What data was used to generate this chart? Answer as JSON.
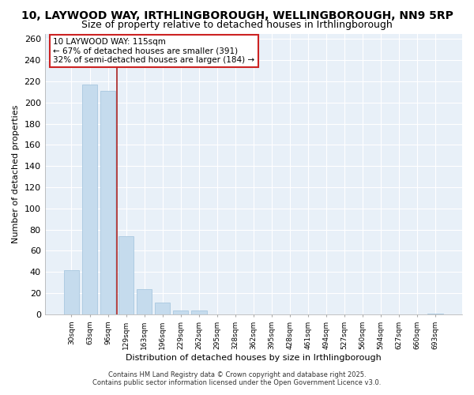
{
  "title": "10, LAYWOOD WAY, IRTHLINGBOROUGH, WELLINGBOROUGH, NN9 5RP",
  "subtitle": "Size of property relative to detached houses in Irthlingborough",
  "xlabel": "Distribution of detached houses by size in Irthlingborough",
  "ylabel": "Number of detached properties",
  "bar_labels": [
    "30sqm",
    "63sqm",
    "96sqm",
    "129sqm",
    "163sqm",
    "196sqm",
    "229sqm",
    "262sqm",
    "295sqm",
    "328sqm",
    "362sqm",
    "395sqm",
    "428sqm",
    "461sqm",
    "494sqm",
    "527sqm",
    "560sqm",
    "594sqm",
    "627sqm",
    "660sqm",
    "693sqm"
  ],
  "bar_values": [
    42,
    217,
    211,
    74,
    24,
    11,
    4,
    4,
    0,
    0,
    0,
    0,
    0,
    0,
    0,
    0,
    0,
    0,
    0,
    0,
    1
  ],
  "bar_color": "#c5dbed",
  "bar_edge_color": "#a8c8e0",
  "vline_x": 2.5,
  "vline_color": "#aa2222",
  "ylim": [
    0,
    265
  ],
  "yticks": [
    0,
    20,
    40,
    60,
    80,
    100,
    120,
    140,
    160,
    180,
    200,
    220,
    240,
    260
  ],
  "annotation_title": "10 LAYWOOD WAY: 115sqm",
  "annotation_line1": "← 67% of detached houses are smaller (391)",
  "annotation_line2": "32% of semi-detached houses are larger (184) →",
  "annotation_box_color": "#ffffff",
  "annotation_box_edge_color": "#cc2222",
  "footer1": "Contains HM Land Registry data © Crown copyright and database right 2025.",
  "footer2": "Contains public sector information licensed under the Open Government Licence v3.0.",
  "bg_color": "#ffffff",
  "plot_bg_color": "#e8f0f8",
  "grid_color": "#ffffff",
  "title_fontsize": 10,
  "subtitle_fontsize": 9
}
